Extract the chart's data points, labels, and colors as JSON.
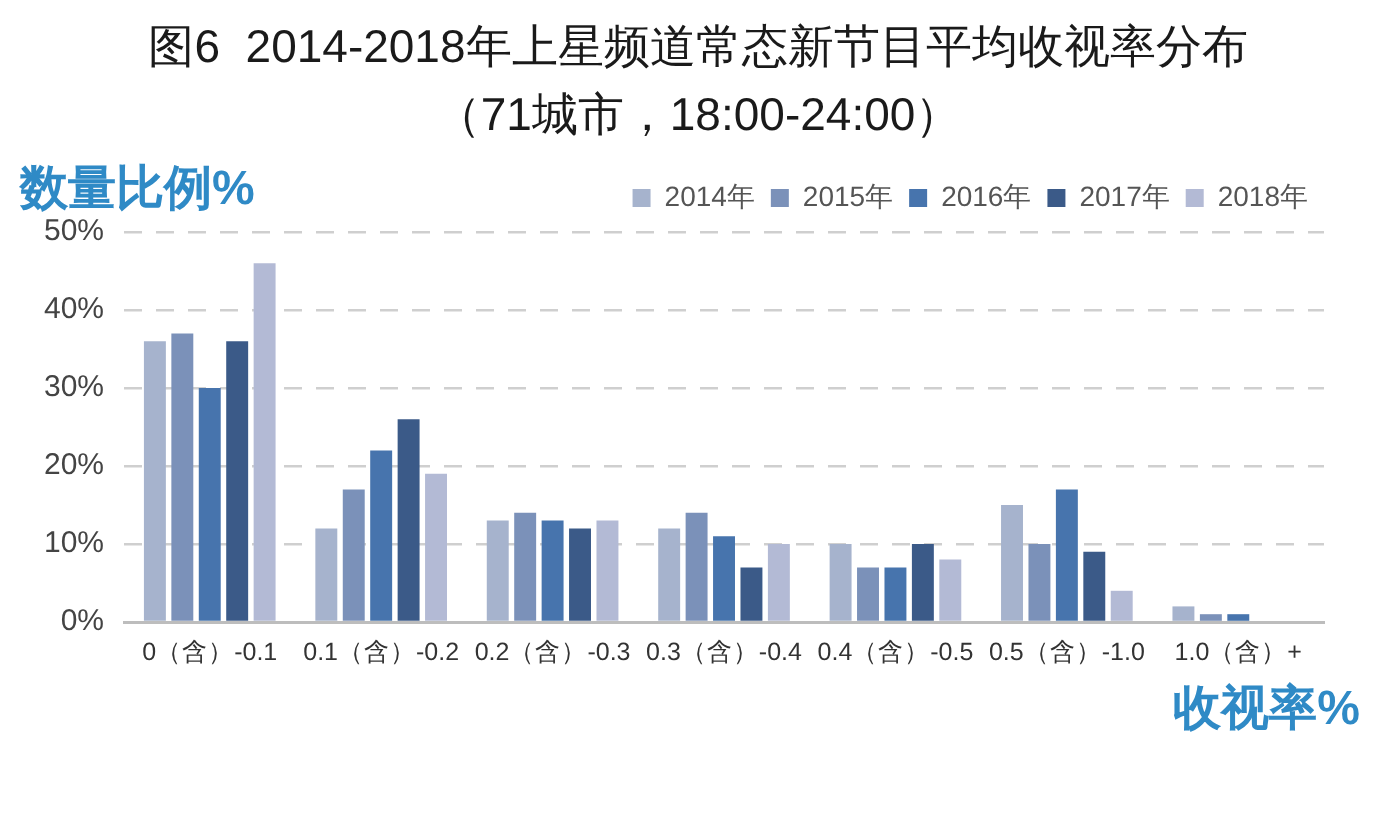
{
  "chart_data": {
    "type": "bar",
    "title": "图6  2014-2018年上星频道常态新节目平均收视率分布",
    "subtitle": "（71城市，18:00-24:00）",
    "ylabel": "数量比例%",
    "xlabel": "收视率%",
    "categories": [
      "0（含）-0.1",
      "0.1（含）-0.2",
      "0.2（含）-0.3",
      "0.3（含）-0.4",
      "0.4（含）-0.5",
      "0.5（含）-1.0",
      "1.0（含）+"
    ],
    "series": [
      {
        "name": "2014年",
        "color": "#a6b3cd",
        "values": [
          36,
          12,
          13,
          12,
          10,
          15,
          2
        ]
      },
      {
        "name": "2015年",
        "color": "#7b91b9",
        "values": [
          37,
          17,
          14,
          14,
          7,
          10,
          1
        ]
      },
      {
        "name": "2016年",
        "color": "#4774ad",
        "values": [
          30,
          22,
          13,
          11,
          7,
          17,
          1
        ]
      },
      {
        "name": "2017年",
        "color": "#3b5a88",
        "values": [
          36,
          26,
          12,
          7,
          10,
          9,
          0
        ]
      },
      {
        "name": "2018年",
        "color": "#b3bad5",
        "values": [
          46,
          19,
          13,
          10,
          8,
          4,
          0
        ]
      }
    ],
    "ylim": [
      0,
      50
    ],
    "yticks": [
      {
        "value": 0,
        "label": "0%"
      },
      {
        "value": 10,
        "label": "10%"
      },
      {
        "value": 20,
        "label": "20%"
      },
      {
        "value": 30,
        "label": "30%"
      },
      {
        "value": 40,
        "label": "40%"
      },
      {
        "value": 50,
        "label": "50%"
      }
    ],
    "grid": "y",
    "legend": "top right"
  }
}
